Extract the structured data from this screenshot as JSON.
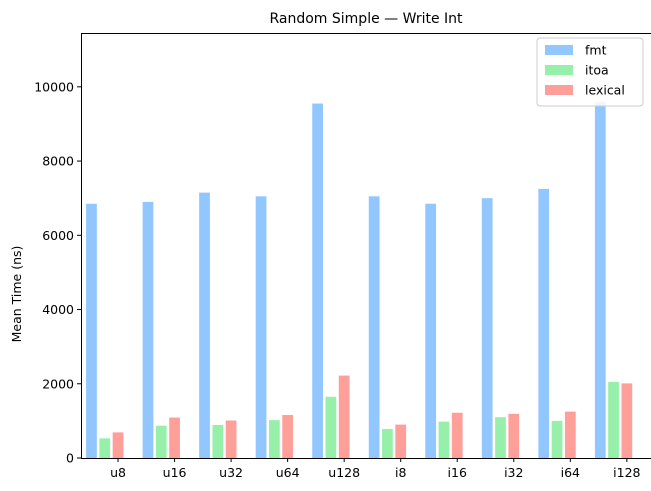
{
  "chart_data": {
    "type": "bar",
    "title": "Random Simple — Write Int",
    "xlabel": "",
    "ylabel": "Mean Time (ns)",
    "ylim": [
      0,
      11450
    ],
    "yticks": [
      0,
      2000,
      4000,
      6000,
      8000,
      10000
    ],
    "ytick_labels": [
      "0",
      "2000",
      "4000",
      "6000",
      "8000",
      "10000"
    ],
    "categories": [
      "u8",
      "u16",
      "u32",
      "u64",
      "u128",
      "i8",
      "i16",
      "i32",
      "i64",
      "i128"
    ],
    "series": [
      {
        "name": "fmt",
        "color": "#92c6ff",
        "values": [
          6850,
          6900,
          7150,
          7050,
          9550,
          7050,
          6850,
          7000,
          7250,
          9600
        ]
      },
      {
        "name": "itoa",
        "color": "#97f0aa",
        "values": [
          530,
          870,
          890,
          1020,
          1650,
          780,
          980,
          1100,
          1000,
          2050
        ]
      },
      {
        "name": "lexical",
        "color": "#ff9f9a",
        "values": [
          690,
          1090,
          1010,
          1160,
          2220,
          900,
          1220,
          1190,
          1250,
          2010
        ]
      }
    ],
    "grid": false,
    "legend_position": "top-right"
  }
}
